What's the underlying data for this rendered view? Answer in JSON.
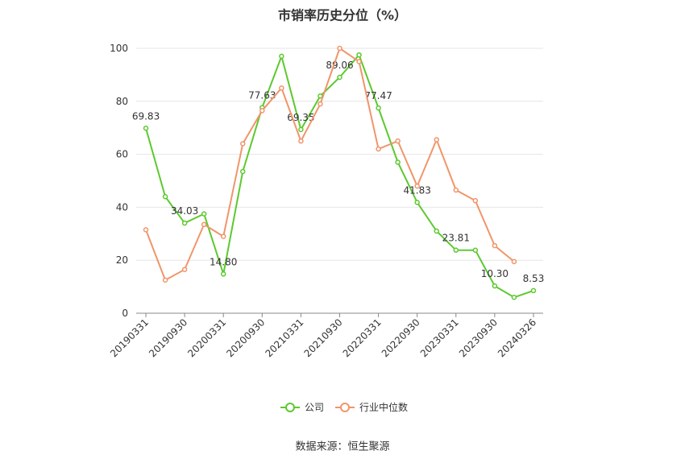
{
  "chart_data": {
    "type": "line",
    "title": "市销率历史分位（%）",
    "categories": [
      "20190331",
      null,
      "20190930",
      null,
      "20200331",
      null,
      "20200930",
      null,
      "20210331",
      null,
      "20210930",
      null,
      "20220331",
      null,
      "20220930",
      null,
      "20230331",
      null,
      "20230930",
      null,
      "20240326"
    ],
    "series": [
      {
        "name": "公司",
        "color": "#5cc92e",
        "values": [
          69.83,
          44,
          34.03,
          37.5,
          14.8,
          53.5,
          77.63,
          97,
          69.35,
          82,
          89.06,
          97.5,
          77.47,
          57,
          41.83,
          31,
          23.81,
          23.8,
          10.3,
          6,
          8.53
        ],
        "value_labels": [
          "69.83",
          null,
          "34.03",
          null,
          "14.80",
          null,
          "77.63",
          null,
          "69.35",
          null,
          "89.06",
          null,
          "77.47",
          null,
          "41.83",
          null,
          "23.81",
          null,
          "10.30",
          null,
          "8.53"
        ]
      },
      {
        "name": "行业中位数",
        "color": "#f0956a",
        "values": [
          31.5,
          12.5,
          16.5,
          33.5,
          29,
          64,
          76.5,
          85,
          65,
          79,
          100,
          95,
          62,
          65,
          48,
          65.5,
          46.5,
          42.5,
          25.5,
          19.5,
          null
        ]
      }
    ],
    "ylim": [
      0,
      100
    ],
    "yticks": [
      0,
      20,
      40,
      60,
      80,
      100
    ],
    "grid": true,
    "legend": "bottom",
    "source": "数据来源：恒生聚源"
  }
}
